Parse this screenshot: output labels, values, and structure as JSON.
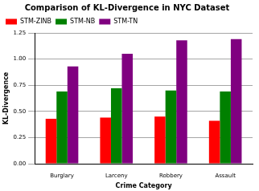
{
  "chart_data": {
    "type": "bar",
    "title": "Comparison of KL-Divergence in NYC Dataset",
    "x_label": "Crime Category",
    "y_label": "KL-Divergence",
    "categories": [
      "Burglary",
      "Larceny",
      "Robbery",
      "Assault"
    ],
    "series": [
      {
        "name": "STM-ZINB",
        "color": "#ff0000",
        "values": [
          0.43,
          0.44,
          0.45,
          0.41
        ]
      },
      {
        "name": "STM-NB",
        "color": "#008000",
        "values": [
          0.69,
          0.72,
          0.7,
          0.69
        ]
      },
      {
        "name": "STM-TN",
        "color": "#800080",
        "values": [
          0.93,
          1.05,
          1.18,
          1.19
        ]
      }
    ],
    "ylim": [
      0,
      1.25
    ],
    "yticks": [
      {
        "value": 0,
        "label": "0.00"
      },
      0.25,
      {
        "value": 0.5,
        "label": "0.50"
      },
      0.75,
      {
        "value": 1,
        "label": "1.00"
      },
      1.25
    ],
    "grid": true,
    "legend": "upper left"
  }
}
